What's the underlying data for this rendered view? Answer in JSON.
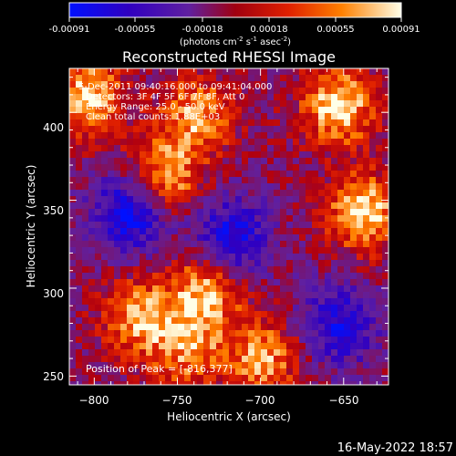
{
  "colorbar": {
    "ticks": [
      "-0.00091",
      "-0.00055",
      "-0.00018",
      "0.00018",
      "0.00055",
      "0.00091"
    ],
    "units_main": "(photons cm",
    "units_exp1": "-2",
    "units_mid": " s",
    "units_exp2": "-1",
    "units_tail": " asec",
    "units_exp3": "-2",
    "units_end": ")"
  },
  "plot": {
    "title": "Reconstructed RHESSI Image",
    "info_lines": [
      "5-Dec-2011 09:40:16.000 to 09:41:04.000",
      "Detectors: 3F 4F 5F 6F 7F 8F, Att 0",
      "Energy Range: 25.0 - 50.0 keV",
      "Clean   total counts: 1.88E+03"
    ],
    "peak_text": "Position of Peak = [-816,377]",
    "timestamp": "16-May-2022 18:57"
  },
  "chart_data": {
    "type": "heatmap",
    "title": "Reconstructed RHESSI Image",
    "xlabel": "Heliocentric X (arcsec)",
    "ylabel": "Heliocentric Y (arcsec)",
    "xlim": [
      -815,
      -623
    ],
    "ylim": [
      245,
      425
    ],
    "xticks": [
      -800,
      -750,
      -700,
      -650
    ],
    "yticks": [
      250,
      300,
      350,
      400
    ],
    "colorbar_range": [
      -0.00091,
      0.00091
    ],
    "colormap": [
      "#0000ff",
      "#3a00a0",
      "#6a1fb0",
      "#b00000",
      "#ff3000",
      "#ffb000",
      "#ffffe0"
    ],
    "bright_regions": [
      {
        "x": -805,
        "y": 410,
        "level": 0.00085
      },
      {
        "x": -760,
        "y": 365,
        "level": 0.0008
      },
      {
        "x": -740,
        "y": 400,
        "level": 0.0007
      },
      {
        "x": -655,
        "y": 405,
        "level": 0.0009
      },
      {
        "x": -640,
        "y": 345,
        "level": 0.0009
      },
      {
        "x": -735,
        "y": 300,
        "level": 0.0008
      },
      {
        "x": -775,
        "y": 285,
        "level": 0.00075
      },
      {
        "x": -700,
        "y": 262,
        "level": 0.0007
      },
      {
        "x": -745,
        "y": 265,
        "level": 0.0006
      }
    ],
    "dark_regions": [
      {
        "x": -780,
        "y": 345,
        "level": -0.0009
      },
      {
        "x": -720,
        "y": 330,
        "level": -0.0008
      },
      {
        "x": -655,
        "y": 280,
        "level": -0.0007
      }
    ]
  }
}
